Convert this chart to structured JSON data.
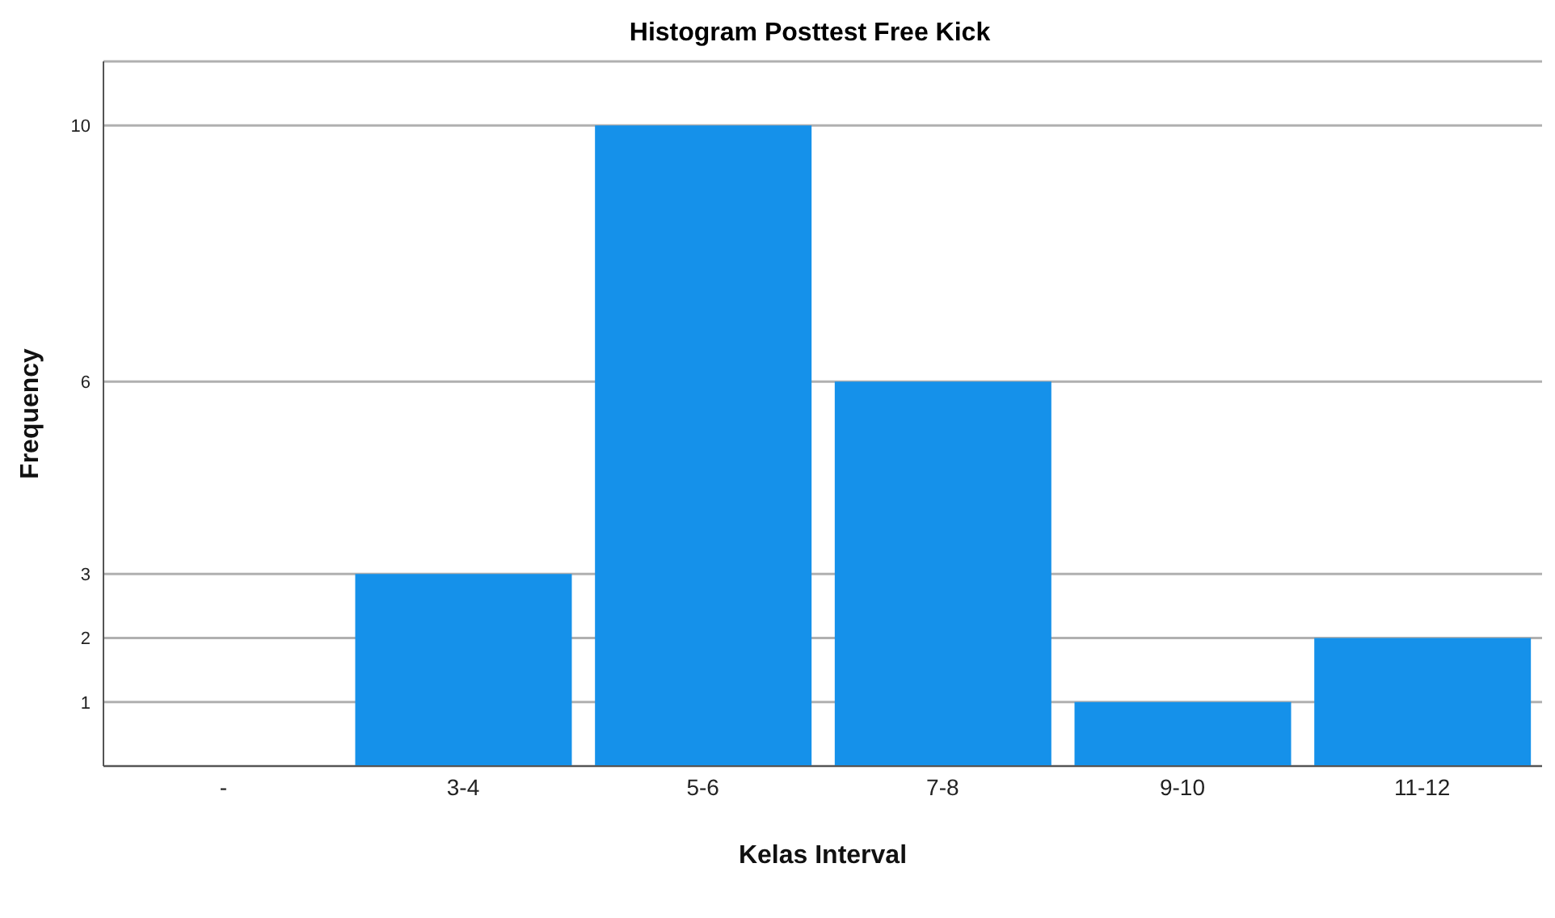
{
  "chart_data": {
    "type": "bar",
    "title": "Histogram Posttest Free Kick",
    "xlabel": "Kelas Interval",
    "ylabel": "Frequency",
    "categories": [
      "-",
      "3-4",
      "5-6",
      "7-8",
      "9-10",
      "11-12"
    ],
    "values": [
      0,
      3,
      10,
      6,
      1,
      2
    ],
    "color": "#1591ea",
    "ylim": [
      0,
      11
    ],
    "yticks": [
      1,
      2,
      3,
      6,
      10
    ],
    "grid": "y"
  }
}
